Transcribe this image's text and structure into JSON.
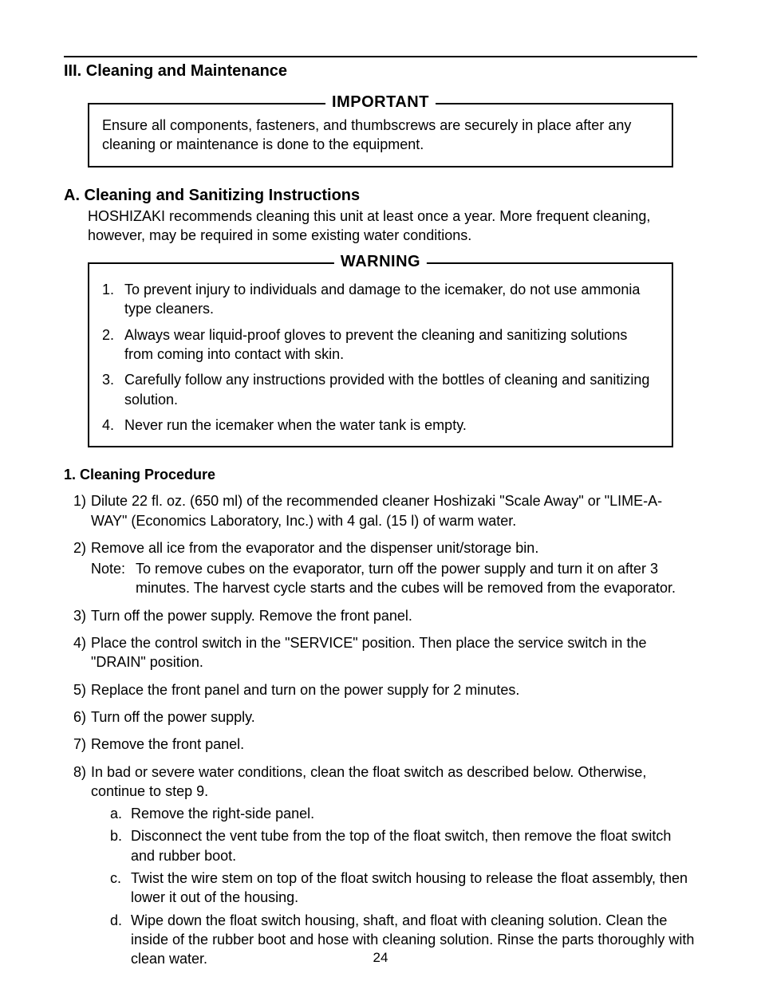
{
  "page_number": "24",
  "section_heading": "III. Cleaning and Maintenance",
  "important_box": {
    "title": "IMPORTANT",
    "text": "Ensure all components, fasteners, and thumbscrews are securely in place after any cleaning or maintenance is done to the equipment."
  },
  "subsection_a": {
    "heading": "A. Cleaning and Sanitizing Instructions",
    "intro": "HOSHIZAKI recommends cleaning this unit at least once a year. More frequent cleaning, however, may be required in some existing water conditions."
  },
  "warning_box": {
    "title": "WARNING",
    "items": [
      {
        "n": "1.",
        "t": "To prevent injury to individuals and damage to the icemaker, do not use ammonia type cleaners."
      },
      {
        "n": "2.",
        "t": "Always wear liquid-proof gloves to prevent the cleaning and sanitizing solutions from coming into contact with skin."
      },
      {
        "n": "3.",
        "t": "Carefully follow any instructions provided with the bottles of cleaning and sanitizing solution."
      },
      {
        "n": "4.",
        "t": "Never run the icemaker when the water tank is empty."
      }
    ]
  },
  "procedure": {
    "heading": "1. Cleaning Procedure",
    "steps": [
      {
        "n": "1)",
        "t": "Dilute 22 fl. oz. (650 ml) of the recommended cleaner Hoshizaki \"Scale Away\" or \"LIME-A-WAY\" (Economics Laboratory, Inc.) with 4 gal. (15 l) of warm water."
      },
      {
        "n": "2)",
        "t": "Remove all ice from the evaporator and the dispenser unit/storage bin.",
        "note_label": "Note:",
        "note": "To remove cubes on the evaporator, turn off the power supply and turn it on after 3 minutes. The harvest cycle starts and the cubes will be removed from the evaporator."
      },
      {
        "n": "3)",
        "t": "Turn off the power supply. Remove the front panel."
      },
      {
        "n": "4)",
        "t": "Place the control switch in the \"SERVICE\" position. Then place the service switch in the \"DRAIN\" position."
      },
      {
        "n": "5)",
        "t": "Replace the front panel and turn on the power supply for 2 minutes."
      },
      {
        "n": "6)",
        "t": "Turn off the power supply."
      },
      {
        "n": "7)",
        "t": "Remove the front panel."
      },
      {
        "n": "8)",
        "t": "In bad or severe water conditions, clean the float switch as described below. Otherwise, continue to step 9.",
        "subs": [
          {
            "l": "a.",
            "t": "Remove the right-side panel."
          },
          {
            "l": "b.",
            "t": "Disconnect the vent tube from the top of the float switch, then remove the float switch and rubber boot."
          },
          {
            "l": "c.",
            "t": "Twist the wire stem on top of the float switch housing to release the float assembly, then lower it out of the housing."
          },
          {
            "l": "d.",
            "t": "Wipe down the float switch housing, shaft, and float with cleaning solution. Clean the inside of the rubber boot and hose with cleaning solution. Rinse the parts thoroughly with clean water."
          }
        ]
      }
    ]
  }
}
